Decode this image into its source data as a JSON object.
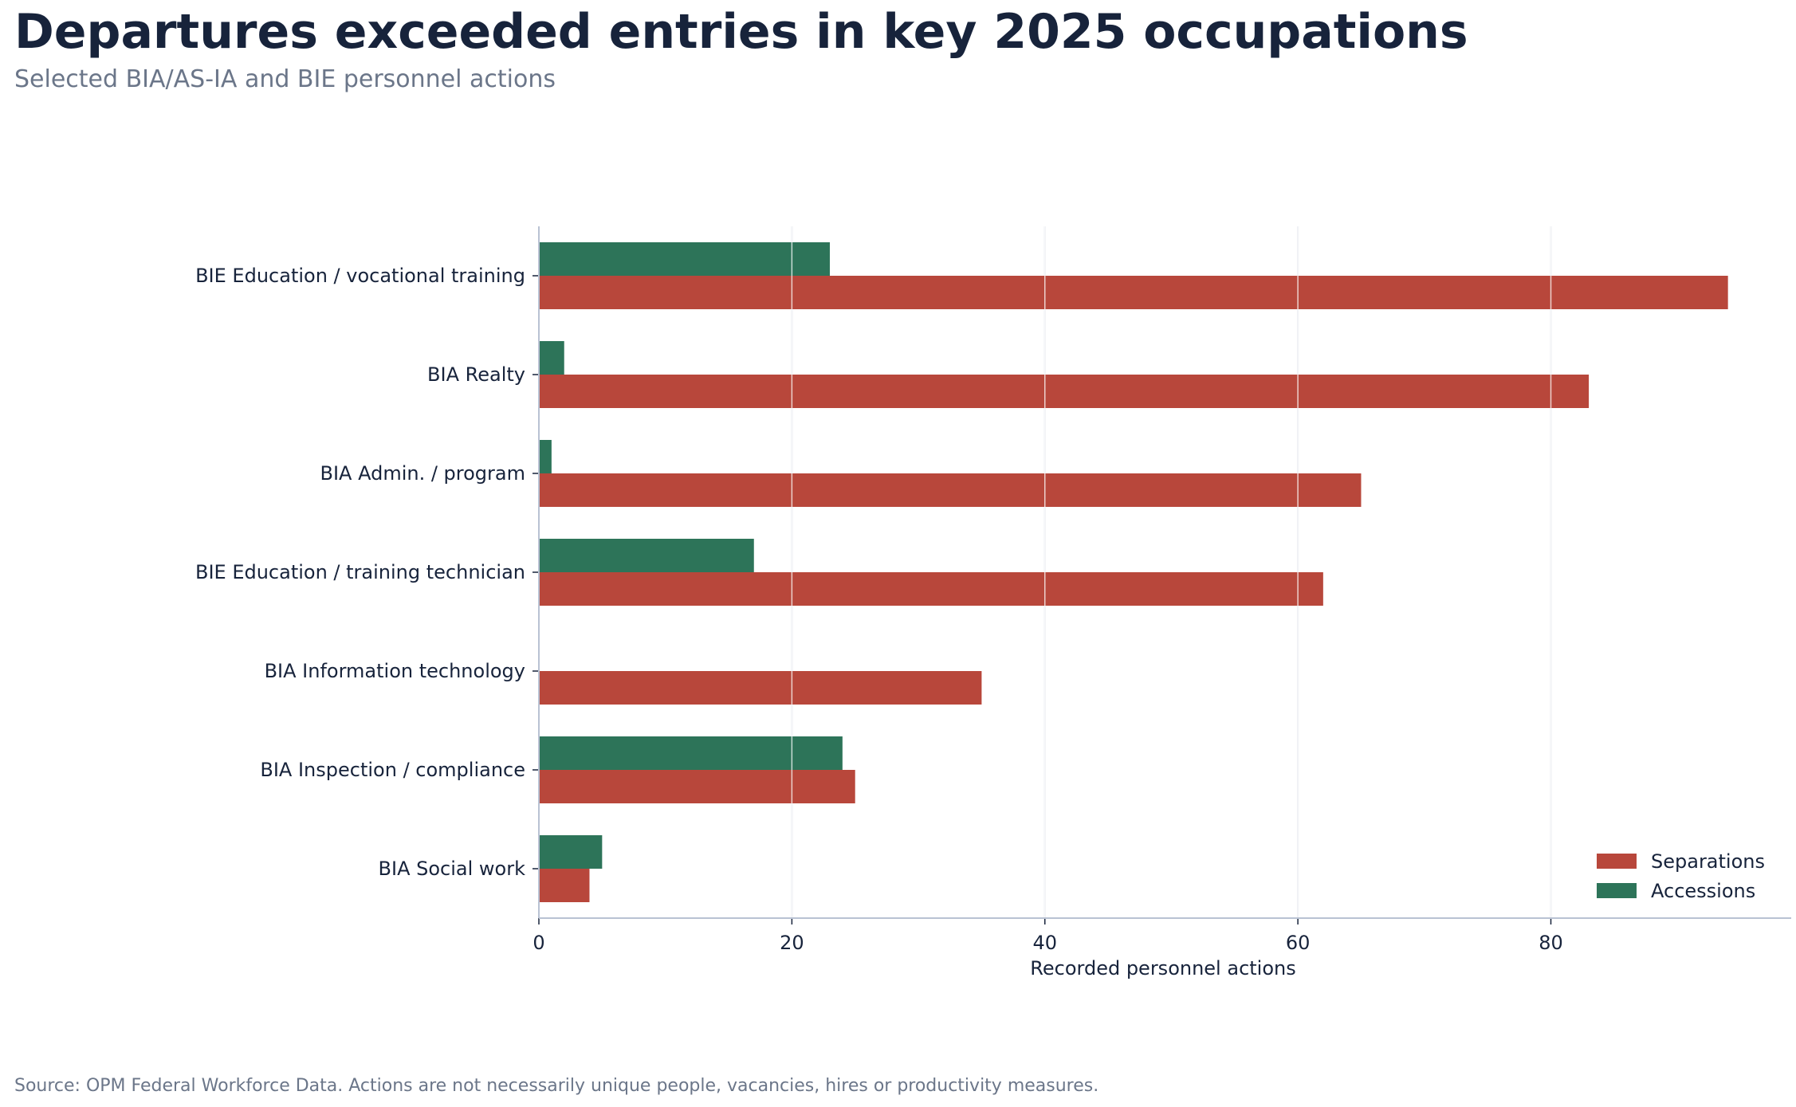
{
  "title": "Departures exceeded entries in key 2025 occupations",
  "subtitle": "Selected BIA/AS-IA and BIE personnel actions",
  "source": "Source: OPM Federal Workforce Data. Actions are not necessarily unique people, vacancies, hires or productivity measures.",
  "colors": {
    "separations": "#b8473b",
    "accessions": "#2d7459",
    "grid": "#dcdfe8",
    "axis": "#b9c2d3"
  },
  "chart_data": {
    "type": "bar",
    "orientation": "horizontal",
    "categories": [
      "BIE Education / vocational training",
      "BIA Realty",
      "BIA Admin. / program",
      "BIE Education / training technician",
      "BIA Information technology",
      "BIA Inspection / compliance",
      "BIA Social work"
    ],
    "series": [
      {
        "name": "Separations",
        "values": [
          94,
          83,
          65,
          62,
          35,
          25,
          4
        ]
      },
      {
        "name": "Accessions",
        "values": [
          23,
          2,
          1,
          17,
          0,
          24,
          5
        ]
      }
    ],
    "xlabel": "Recorded personnel actions",
    "ylabel": "",
    "xlim": [
      0,
      99
    ],
    "xticks": [
      0,
      20,
      40,
      60,
      80
    ],
    "grid": "vertical",
    "legend": "bottom-right"
  }
}
